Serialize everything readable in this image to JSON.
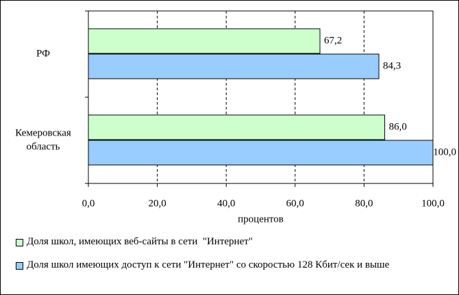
{
  "chart_data": {
    "type": "barh",
    "categories": [
      "РФ",
      "Кемеровская область"
    ],
    "series": [
      {
        "name": "Доля школ, имеющих веб-сайты в сети  \"Интернет\"",
        "color": "#ccffcc",
        "values": [
          67.2,
          86.0
        ],
        "value_labels": [
          "67,2",
          "86,0"
        ]
      },
      {
        "name": "Доля школ имеющих доступ к сети \"Интернет\" со скоростью 128 Кбит/сек и выше",
        "color": "#99ccff",
        "values": [
          84.3,
          100.0
        ],
        "value_labels": [
          "84,3",
          "100,0"
        ]
      }
    ],
    "xlabel": "процентов",
    "xlim": [
      0,
      100
    ],
    "xticks": [
      {
        "value": 0,
        "label": "0,0"
      },
      {
        "value": 20,
        "label": "20,0"
      },
      {
        "value": 40,
        "label": "40,0"
      },
      {
        "value": 60,
        "label": "60,0"
      },
      {
        "value": 80,
        "label": "80,0"
      },
      {
        "value": 100,
        "label": "100,0"
      }
    ],
    "grid": true
  }
}
